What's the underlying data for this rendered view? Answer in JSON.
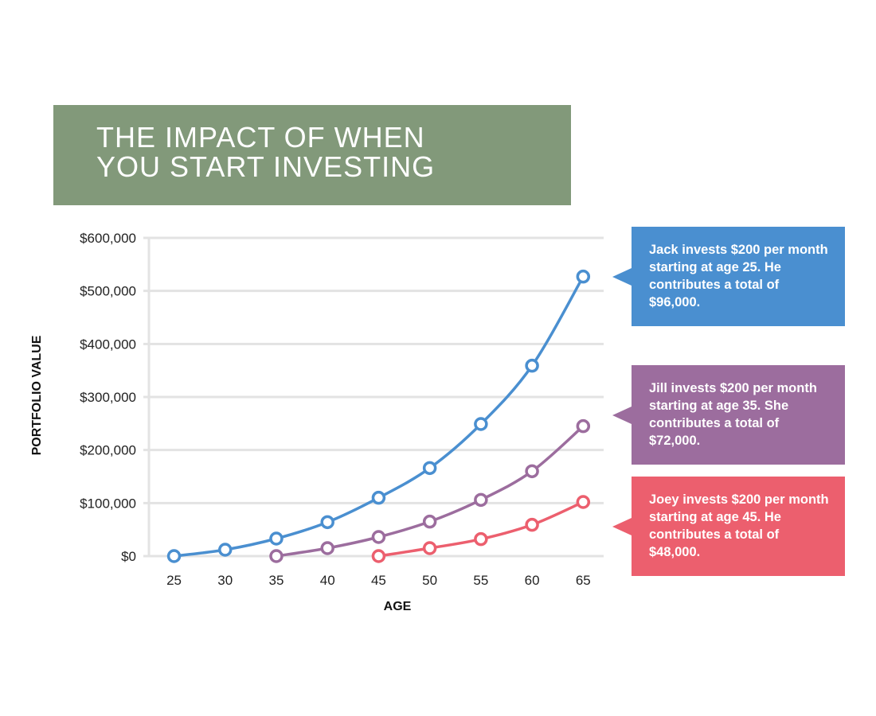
{
  "title": {
    "line1": "THE IMPACT OF WHEN",
    "line2": "YOU START INVESTING",
    "background": "#82997a"
  },
  "chart_data": {
    "type": "line",
    "title": "THE IMPACT OF WHEN YOU START INVESTING",
    "xlabel": "AGE",
    "ylabel": "PORTFOLIO VALUE",
    "x_ticks": [
      25,
      30,
      35,
      40,
      45,
      50,
      55,
      60,
      65
    ],
    "y_ticks": [
      0,
      100000,
      200000,
      300000,
      400000,
      500000,
      600000
    ],
    "y_tick_labels": [
      "$0",
      "$100,000",
      "$200,000",
      "$300,000",
      "$400,000",
      "$500,000",
      "$600,000"
    ],
    "xlim": [
      22,
      67
    ],
    "ylim": [
      0,
      600000
    ],
    "grid": true,
    "series": [
      {
        "name": "Jack",
        "color": "#4a8fd0",
        "x": [
          25,
          30,
          35,
          40,
          45,
          50,
          55,
          60,
          65
        ],
        "values": [
          0,
          12000,
          33000,
          64000,
          110000,
          166000,
          249000,
          359000,
          527000
        ]
      },
      {
        "name": "Jill",
        "color": "#9c6d9e",
        "x": [
          35,
          40,
          45,
          50,
          55,
          60,
          65
        ],
        "values": [
          0,
          15000,
          36000,
          65000,
          106000,
          160000,
          245000
        ]
      },
      {
        "name": "Joey",
        "color": "#ec5f6e",
        "x": [
          45,
          50,
          55,
          60,
          65
        ],
        "values": [
          0,
          15000,
          32000,
          59000,
          102000
        ]
      }
    ]
  },
  "callouts": [
    {
      "series": "Jack",
      "text": "Jack invests $200 per month starting at  age 25. He contributes a total of $96,000.",
      "color": "#4a8fd0"
    },
    {
      "series": "Jill",
      "text": "Jill invests $200 per month starting at age 35. She contributes a total of $72,000.",
      "color": "#9c6d9e"
    },
    {
      "series": "Joey",
      "text": "Joey invests $200 per month starting at age 45. He contributes a total of $48,000.",
      "color": "#ec5f6e"
    }
  ]
}
